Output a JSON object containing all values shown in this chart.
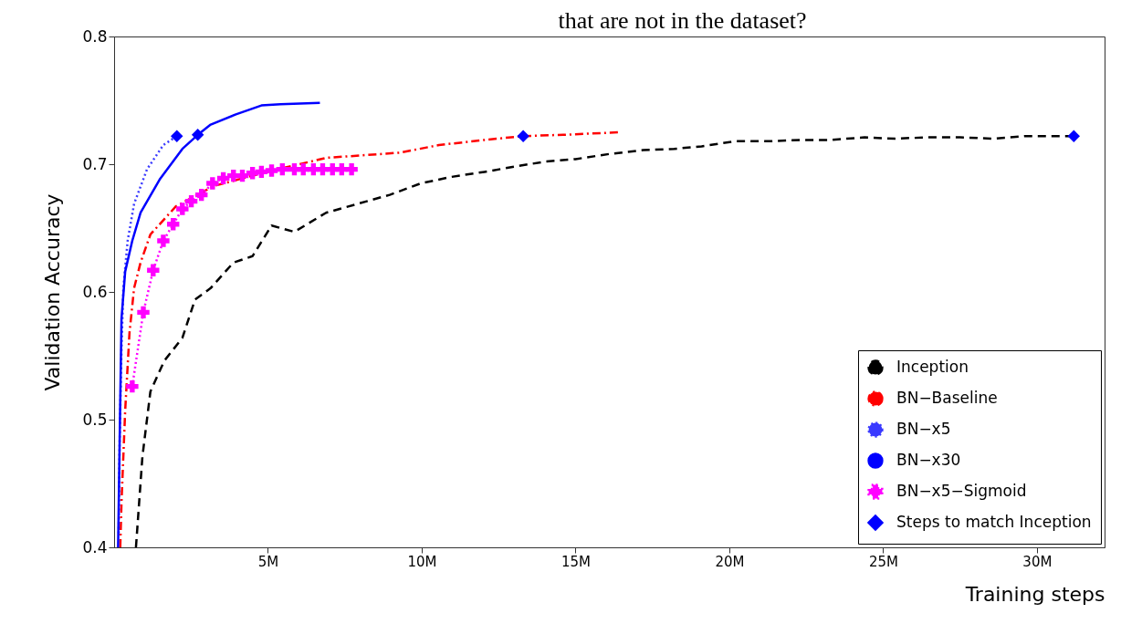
{
  "chart_data": {
    "type": "line",
    "xlabel": "Training steps",
    "ylabel": "Validation Accuracy",
    "annotations": [
      "that are not in the dataset?"
    ],
    "xlim": [
      0,
      32.2
    ],
    "ylim": [
      0.4,
      0.8
    ],
    "xticks": [
      {
        "value": 5,
        "label": "5M"
      },
      {
        "value": 10,
        "label": "10M"
      },
      {
        "value": 15,
        "label": "15M"
      },
      {
        "value": 20,
        "label": "20M"
      },
      {
        "value": 25,
        "label": "25M"
      },
      {
        "value": 30,
        "label": "30M"
      }
    ],
    "yticks": [
      0.4,
      0.5,
      0.6,
      0.7,
      0.8
    ],
    "grid": false,
    "legend": "bottom right",
    "series": [
      {
        "name": "Inception",
        "type": "line",
        "color": "#000000",
        "line_style": "dashed",
        "marker": "none",
        "x": [
          0.71,
          0.92,
          1.18,
          1.63,
          2.22,
          2.63,
          3.14,
          3.88,
          4.5,
          5.12,
          5.86,
          6.89,
          8.96,
          9.97,
          10.95,
          12.04,
          13.0,
          14.0,
          15.0,
          16.1,
          17.2,
          18.2,
          19.1,
          20.2,
          21.3,
          22.3,
          23.3,
          24.4,
          25.4,
          26.4,
          27.5,
          28.6,
          29.6,
          30.7,
          31.2
        ],
        "values": [
          0.4,
          0.471,
          0.522,
          0.546,
          0.564,
          0.594,
          0.603,
          0.623,
          0.628,
          0.652,
          0.647,
          0.662,
          0.676,
          0.685,
          0.69,
          0.694,
          0.698,
          0.702,
          0.704,
          0.708,
          0.711,
          0.712,
          0.714,
          0.718,
          0.718,
          0.719,
          0.719,
          0.721,
          0.72,
          0.721,
          0.721,
          0.72,
          0.722,
          0.722,
          0.722
        ]
      },
      {
        "name": "BN−Baseline",
        "type": "line",
        "color": "#ff0000",
        "line_style": "dashdot",
        "marker": "none",
        "x": [
          0.2,
          0.24,
          0.36,
          0.5,
          0.65,
          0.86,
          1.18,
          2.01,
          3.25,
          4.8,
          6.9,
          9.29,
          10.56,
          12.04,
          13.3,
          14.6,
          16.4
        ],
        "values": [
          0.4,
          0.435,
          0.507,
          0.568,
          0.603,
          0.623,
          0.645,
          0.667,
          0.683,
          0.693,
          0.705,
          0.709,
          0.715,
          0.719,
          0.722,
          0.723,
          0.725
        ]
      },
      {
        "name": "BN−x5",
        "type": "line",
        "color": "#3a3aff",
        "line_style": "dotted",
        "marker": "none",
        "x": [
          0.15,
          0.18,
          0.24,
          0.3,
          0.44,
          0.65,
          1.07,
          1.6,
          2.04
        ],
        "values": [
          0.411,
          0.483,
          0.555,
          0.603,
          0.64,
          0.669,
          0.696,
          0.715,
          0.722
        ]
      },
      {
        "name": "BN−x30",
        "type": "line",
        "color": "#0000ff",
        "line_style": "solid",
        "marker": "none",
        "x": [
          0.13,
          0.18,
          0.24,
          0.36,
          0.59,
          0.86,
          1.48,
          2.22,
          2.72,
          3.14,
          3.96,
          4.79,
          5.41,
          6.69
        ],
        "values": [
          0.4,
          0.483,
          0.579,
          0.616,
          0.64,
          0.662,
          0.688,
          0.712,
          0.723,
          0.731,
          0.739,
          0.746,
          0.747,
          0.748
        ]
      },
      {
        "name": "BN−x5−Sigmoid",
        "type": "line",
        "color": "#ff00ff",
        "line_style": "dotted",
        "marker": "cross",
        "x": [
          0.59,
          0.95,
          1.27,
          1.6,
          1.92,
          2.22,
          2.51,
          2.84,
          3.2,
          3.55,
          3.88,
          4.17,
          4.5,
          4.79,
          5.12,
          5.47,
          5.86,
          6.15,
          6.48,
          6.78,
          7.1,
          7.4,
          7.72
        ],
        "values": [
          0.526,
          0.584,
          0.617,
          0.64,
          0.653,
          0.665,
          0.671,
          0.676,
          0.685,
          0.689,
          0.691,
          0.691,
          0.693,
          0.694,
          0.695,
          0.696,
          0.696,
          0.696,
          0.696,
          0.696,
          0.696,
          0.696,
          0.696
        ]
      },
      {
        "name": "Steps to match Inception",
        "type": "scatter",
        "color": "#0000ff",
        "marker": "diamond",
        "x": [
          2.04,
          2.72,
          13.3,
          31.2
        ],
        "values": [
          0.722,
          0.723,
          0.722,
          0.722
        ]
      }
    ]
  }
}
